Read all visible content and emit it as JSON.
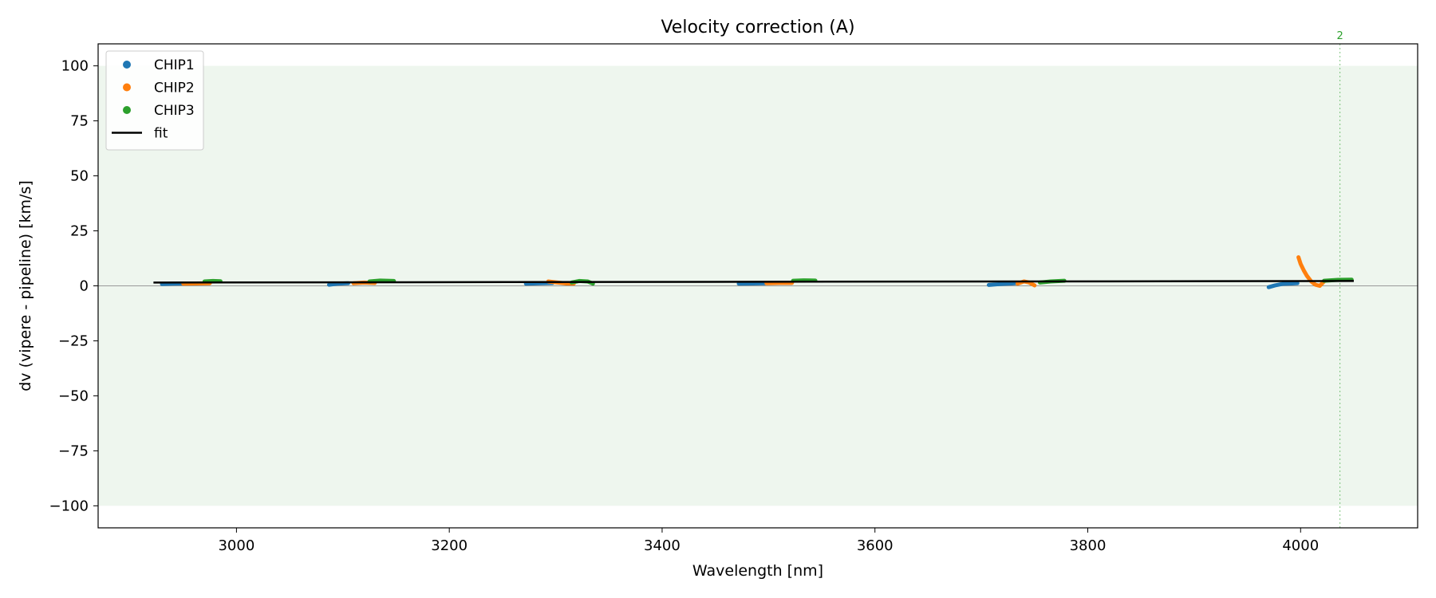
{
  "chart_data": {
    "type": "scatter",
    "title": "Velocity correction (A)",
    "xlabel": "Wavelength [nm]",
    "ylabel": "dv (vipere - pipeline) [km/s]",
    "xlim": [
      2870,
      4110
    ],
    "ylim": [
      -110,
      110
    ],
    "xticks": [
      3000,
      3200,
      3400,
      3600,
      3800,
      4000
    ],
    "yticks": [
      -100,
      -75,
      -50,
      -25,
      0,
      25,
      50,
      75,
      100
    ],
    "grid": false,
    "band": {
      "y0": -100,
      "y1": 100,
      "color": "#eef6ee"
    },
    "zero_line": 0,
    "legend": {
      "position": "top-left",
      "entries": [
        "CHIP1",
        "CHIP2",
        "CHIP3",
        "fit"
      ]
    },
    "series": [
      {
        "name": "CHIP1",
        "color": "#1f77b4",
        "segments": [
          [
            [
              2930,
              0.8
            ],
            [
              2940,
              1.0
            ],
            [
              2950,
              1.1
            ]
          ],
          [
            [
              3087,
              0.5
            ],
            [
              3095,
              1.0
            ],
            [
              3105,
              1.2
            ]
          ],
          [
            [
              3272,
              1.0
            ],
            [
              3285,
              1.2
            ],
            [
              3297,
              1.3
            ]
          ],
          [
            [
              3472,
              1.0
            ],
            [
              3485,
              1.1
            ],
            [
              3497,
              1.2
            ]
          ],
          [
            [
              3707,
              0.4
            ],
            [
              3715,
              0.7
            ],
            [
              3724,
              1.0
            ],
            [
              3733,
              1.2
            ]
          ],
          [
            [
              3970,
              -0.6
            ],
            [
              3976,
              0.2
            ],
            [
              3983,
              0.9
            ],
            [
              3992,
              1.1
            ],
            [
              3997,
              1.2
            ]
          ]
        ]
      },
      {
        "name": "CHIP2",
        "color": "#ff7f0e",
        "segments": [
          [
            [
              2950,
              1.0
            ],
            [
              2962,
              1.1
            ],
            [
              2975,
              1.2
            ]
          ],
          [
            [
              3110,
              1.2
            ],
            [
              3120,
              1.5
            ],
            [
              3130,
              1.3
            ]
          ],
          [
            [
              3293,
              2.0
            ],
            [
              3300,
              1.6
            ],
            [
              3310,
              1.1
            ],
            [
              3317,
              1.0
            ]
          ],
          [
            [
              3498,
              1.2
            ],
            [
              3510,
              1.3
            ],
            [
              3522,
              1.3
            ]
          ],
          [
            [
              3734,
              1.0
            ],
            [
              3740,
              2.0
            ],
            [
              3745,
              1.5
            ],
            [
              3750,
              0.2
            ]
          ],
          [
            [
              3998,
              13.0
            ],
            [
              4000,
              10.0
            ],
            [
              4003,
              7.0
            ],
            [
              4006,
              4.5
            ],
            [
              4010,
              2.0
            ],
            [
              4014,
              0.5
            ],
            [
              4018,
              0.0
            ],
            [
              4022,
              2.0
            ]
          ]
        ]
      },
      {
        "name": "CHIP3",
        "color": "#2ca02c",
        "segments": [
          [
            [
              2970,
              2.0
            ],
            [
              2978,
              2.2
            ],
            [
              2985,
              2.1
            ]
          ],
          [
            [
              3125,
              2.0
            ],
            [
              3135,
              2.4
            ],
            [
              3148,
              2.2
            ]
          ],
          [
            [
              3315,
              1.5
            ],
            [
              3322,
              2.2
            ],
            [
              3330,
              2.0
            ],
            [
              3335,
              1.0
            ]
          ],
          [
            [
              3523,
              2.3
            ],
            [
              3533,
              2.5
            ],
            [
              3544,
              2.4
            ]
          ],
          [
            [
              3755,
              1.5
            ],
            [
              3765,
              2.0
            ],
            [
              3778,
              2.3
            ]
          ],
          [
            [
              4022,
              2.3
            ],
            [
              4035,
              2.7
            ],
            [
              4048,
              2.8
            ]
          ]
        ]
      },
      {
        "name": "fit",
        "type": "line",
        "color": "#000000",
        "x": [
          2922,
          4050
        ],
        "y": [
          1.5,
          2.2
        ]
      }
    ],
    "vertical_markers": [
      {
        "x": 4037,
        "label": "2",
        "color": "#2ca02c"
      }
    ]
  }
}
